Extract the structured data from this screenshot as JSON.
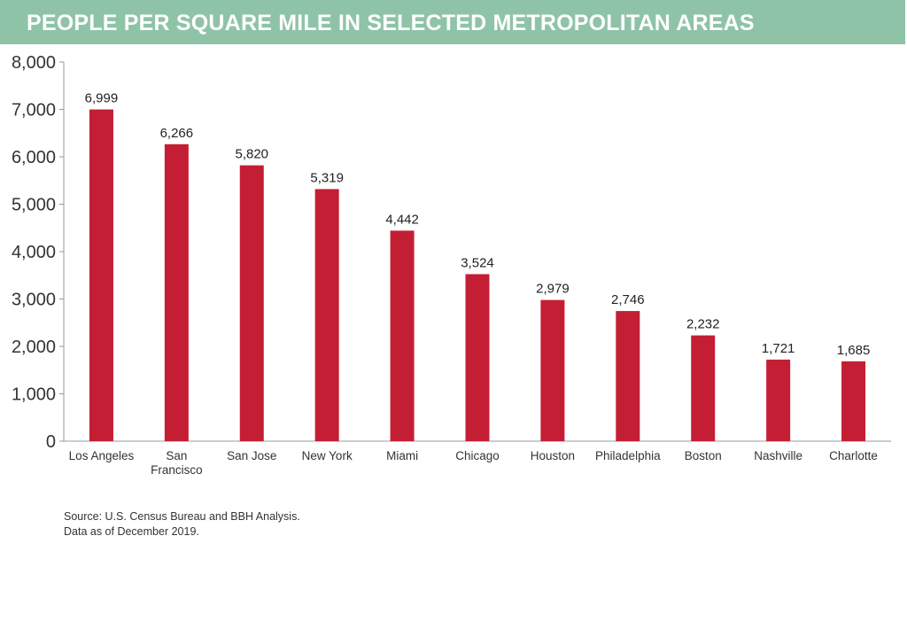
{
  "header": {
    "title": "PEOPLE PER SQUARE MILE IN SELECTED METROPOLITAN AREAS"
  },
  "colors": {
    "title_bar": "#8fc3a7",
    "bar": "#c41e35",
    "axis": "#999999",
    "text": "#333333"
  },
  "chart_data": {
    "type": "bar",
    "title": "PEOPLE PER SQUARE MILE IN SELECTED METROPOLITAN AREAS",
    "xlabel": "",
    "ylabel": "",
    "ylim": [
      0,
      8000
    ],
    "yticks": [
      0,
      1000,
      2000,
      3000,
      4000,
      5000,
      6000,
      7000,
      8000
    ],
    "ytick_labels": [
      "0",
      "1,000",
      "2,000",
      "3,000",
      "4,000",
      "5,000",
      "6,000",
      "7,000",
      "8,000"
    ],
    "categories": [
      "Los Angeles",
      "San Francisco",
      "San Jose",
      "New York",
      "Miami",
      "Chicago",
      "Houston",
      "Philadelphia",
      "Boston",
      "Nashville",
      "Charlotte"
    ],
    "category_lines": [
      [
        "Los Angeles"
      ],
      [
        "San",
        "Francisco"
      ],
      [
        "San Jose"
      ],
      [
        "New York"
      ],
      [
        "Miami"
      ],
      [
        "Chicago"
      ],
      [
        "Houston"
      ],
      [
        "Philadelphia"
      ],
      [
        "Boston"
      ],
      [
        "Nashville"
      ],
      [
        "Charlotte"
      ]
    ],
    "values": [
      6999,
      6266,
      5820,
      5319,
      4442,
      3524,
      2979,
      2746,
      2232,
      1721,
      1685
    ],
    "value_labels": [
      "6,999",
      "6,266",
      "5,820",
      "5,319",
      "4,442",
      "3,524",
      "2,979",
      "2,746",
      "2,232",
      "1,721",
      "1,685"
    ],
    "grid": false,
    "legend": "none"
  },
  "footer": {
    "source_line1": "Source: U.S. Census Bureau and BBH Analysis.",
    "source_line2": "Data as of December 2019."
  }
}
